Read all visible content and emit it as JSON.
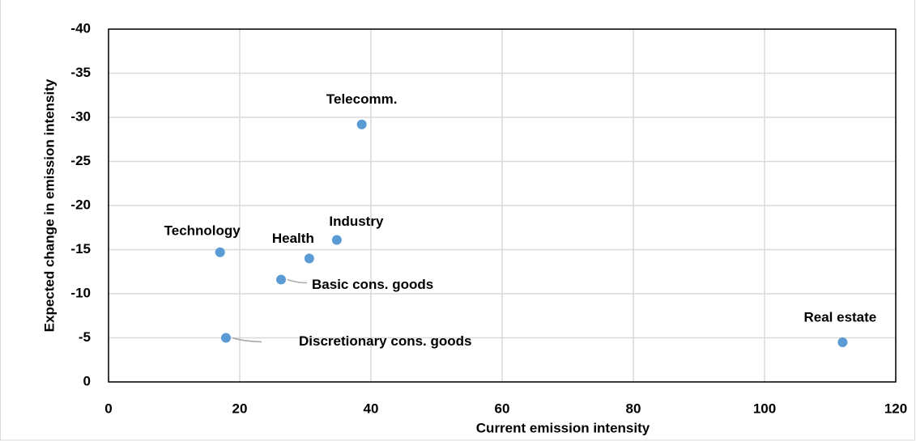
{
  "chart_data": {
    "type": "scatter",
    "x_label": "Current emission intensity",
    "y_label": "Expected change in emission intensity",
    "xlim": [
      0,
      120
    ],
    "xticks": [
      0,
      20,
      40,
      60,
      80,
      100,
      120
    ],
    "ylim": [
      0,
      -40
    ],
    "yticks": [
      0,
      -5,
      -10,
      -15,
      -20,
      -25,
      -30,
      -35,
      -40
    ],
    "grid": true,
    "color": "#5b9bd5",
    "labels": [
      "Telecomm.",
      "Industry",
      "Health",
      "Technology",
      "Basic cons. goods",
      "Discretionary cons. goods",
      "Real estate"
    ],
    "x": [
      38.6,
      34.8,
      30.6,
      17.0,
      26.3,
      17.9,
      111.9
    ],
    "values": [
      -29.2,
      -16.1,
      -14.0,
      -14.7,
      -11.6,
      -5.0,
      -4.5
    ]
  }
}
